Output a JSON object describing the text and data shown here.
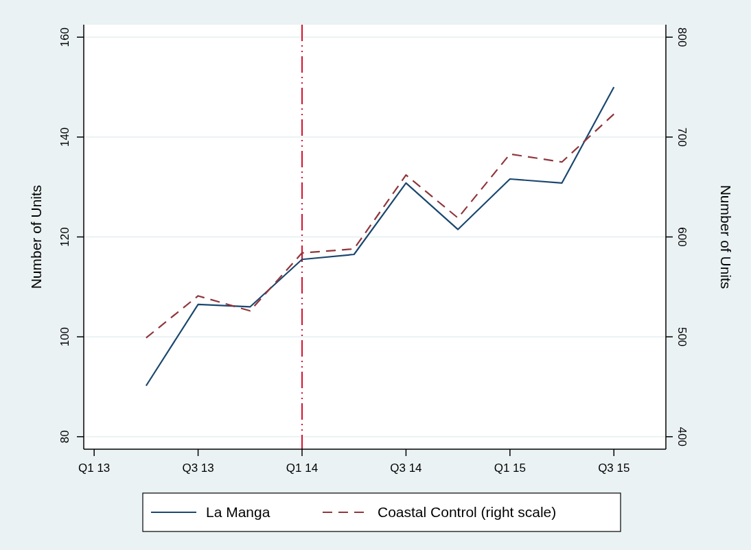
{
  "chart_data": {
    "type": "line",
    "ylabel": "Number of Units",
    "y2label": "Number of Units",
    "categories": [
      "Q1 13",
      null,
      "Q3 13",
      null,
      "Q1 14",
      null,
      "Q3 14",
      null,
      "Q1 15",
      null,
      "Q3 15",
      null
    ],
    "series": [
      {
        "name": "La Manga",
        "color": "#1a476f",
        "values": [
          null,
          90.2,
          106.5,
          106.0,
          115.5,
          116.5,
          130.8,
          121.5,
          131.6,
          130.8,
          150.0,
          null
        ],
        "line_style": "solid"
      },
      {
        "name": "Coastal Control (right scale)",
        "color": "#90353b",
        "axis": "y2",
        "values": [
          null,
          499,
          541,
          526,
          584,
          588,
          662,
          619,
          683,
          675,
          723,
          null
        ],
        "line_style": "dashed"
      }
    ],
    "ylim": [
      77.5,
      162.5
    ],
    "yticks": [
      80,
      100,
      120,
      140,
      160
    ],
    "y2lim": [
      387.5,
      812.5
    ],
    "y2ticks": [
      400,
      500,
      600,
      700,
      800
    ],
    "ref_lines": [
      {
        "axis": "x",
        "value": "Q1 14",
        "color": "#d0112b",
        "line_style": "dashed"
      }
    ],
    "grid": "y",
    "legend": "bottom",
    "marker": "none"
  }
}
